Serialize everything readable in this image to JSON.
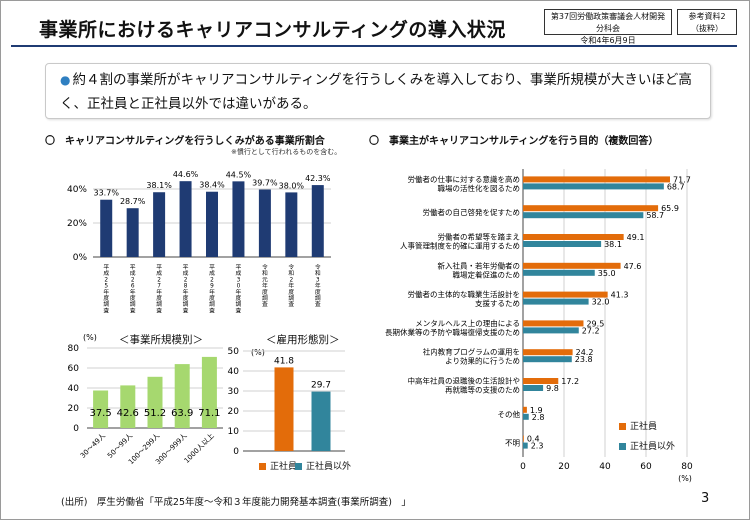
{
  "header": {
    "title": "事業所におけるキャリアコンサルティングの導入状況",
    "meta_line1": "第37回労働政策審議会人材開発分科会",
    "meta_line2": "令和4年6月9日",
    "ref_line1": "参考資料2",
    "ref_line2": "（抜粋）"
  },
  "summary": {
    "bullet": "●",
    "text": "約４割の事業所がキャリアコンサルティングを行うしくみを導入しており、事業所規模が大きいほど高く、正社員と正社員以外では違いがある。"
  },
  "sections": {
    "left_title": "〇　キャリアコンサルティングを行うしくみがある事業所割合",
    "left_note": "※慣行として行われるものを含む。",
    "right_title": "〇　事業主がキャリアコンサルティングを行う目的（複数回答）",
    "size_title": "＜事業所規模別＞",
    "type_title": "＜雇用形態別＞"
  },
  "colors": {
    "navy": "#1f3b73",
    "green": "#a6d86f",
    "orange": "#e36c0a",
    "teal": "#31859c"
  },
  "chart_data": [
    {
      "type": "bar",
      "id": "yearly",
      "categories": [
        "平成25年度調査",
        "平成26年度調査",
        "平成27年度調査",
        "平成28年度調査",
        "平成29年度調査",
        "平成30年度調査",
        "令和元年度調査",
        "令和2年度調査",
        "令和3年度調査"
      ],
      "values": [
        33.7,
        28.7,
        38.1,
        44.6,
        38.4,
        44.5,
        39.7,
        38.0,
        42.3
      ],
      "value_labels": [
        "33.7%",
        "28.7%",
        "38.1%",
        "44.6%",
        "38.4%",
        "44.5%",
        "39.7%",
        "38.0%",
        "42.3%"
      ],
      "yticks": [
        "0%",
        "20%",
        "40%"
      ],
      "ylim": [
        0,
        50
      ]
    },
    {
      "type": "bar",
      "id": "size",
      "categories": [
        "30～49人",
        "50～99人",
        "100～299人",
        "300～999人",
        "1000人以上"
      ],
      "values": [
        37.5,
        42.6,
        51.2,
        63.9,
        71.1
      ],
      "ylabel": "(%)",
      "yticks": [
        "0",
        "20",
        "40",
        "60",
        "80"
      ],
      "ylim": [
        0,
        80
      ]
    },
    {
      "type": "bar",
      "id": "employment",
      "categories": [
        "正社員",
        "正社員以外"
      ],
      "values": [
        41.8,
        29.7
      ],
      "ylabel": "(%)",
      "yticks": [
        "0",
        "10",
        "20",
        "30",
        "40",
        "50"
      ],
      "ylim": [
        0,
        50
      ],
      "legend": [
        "正社員",
        "正社員以外"
      ]
    },
    {
      "type": "bar",
      "id": "purpose",
      "orientation": "horizontal",
      "categories": [
        [
          "労働者の仕事に対する意識を高め",
          "職場の活性化を図るため"
        ],
        [
          "労働者の自己啓発を促すため"
        ],
        [
          "労働者の希望等を踏まえ",
          "人事管理制度を的確に運用するため"
        ],
        [
          "新入社員・若年労働者の",
          "職場定着促進のため"
        ],
        [
          "労働者の主体的な職業生活設計を",
          "支援するため"
        ],
        [
          "メンタルヘルス上の理由による",
          "長期休業等の予防や職場復帰支援のため"
        ],
        [
          "社内教育プログラムの運用を",
          "より効果的に行うため"
        ],
        [
          "中高年社員の退職後の生活設計や",
          "再就職等の支援のため"
        ],
        [
          "その他"
        ],
        [
          "不明"
        ]
      ],
      "series": [
        {
          "name": "正社員",
          "values": [
            71.7,
            65.9,
            49.1,
            47.6,
            41.3,
            29.5,
            24.2,
            17.2,
            1.9,
            0.4
          ]
        },
        {
          "name": "正社員以外",
          "values": [
            68.7,
            58.7,
            38.1,
            35.0,
            32.0,
            27.2,
            23.8,
            9.8,
            2.8,
            2.3
          ]
        }
      ],
      "xlabel": "(%)",
      "xticks": [
        "0",
        "20",
        "40",
        "60",
        "80"
      ],
      "xlim": [
        0,
        80
      ]
    }
  ],
  "footer": {
    "source": "(出所)　厚生労働省「平成25年度～令和３年度能力開発基本調査(事業所調査)　」",
    "page": "3"
  }
}
